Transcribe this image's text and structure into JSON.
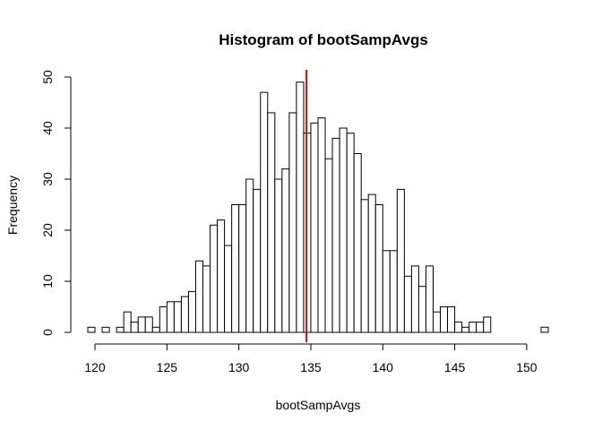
{
  "chart_data": {
    "type": "bar",
    "title": "Histogram of bootSampAvgs",
    "xlabel": "bootSampAvgs",
    "ylabel": "Frequency",
    "xlim": [
      119.5,
      151.5
    ],
    "ylim": [
      0,
      50
    ],
    "x_ticks": [
      120,
      125,
      130,
      135,
      140,
      145,
      150
    ],
    "y_ticks": [
      0,
      10,
      20,
      30,
      40,
      50
    ],
    "bin_width": 0.5,
    "bin_start": 119.5,
    "values": [
      1,
      0,
      1,
      0,
      1,
      4,
      2,
      3,
      3,
      1,
      5,
      6,
      6,
      7,
      8,
      14,
      13,
      21,
      22,
      17,
      25,
      25,
      30,
      28,
      47,
      43,
      30,
      32,
      43,
      49,
      39,
      41,
      42,
      34,
      38,
      40,
      39,
      35,
      26,
      27,
      25,
      16,
      16,
      28,
      11,
      13,
      9,
      13,
      4,
      5,
      5,
      2,
      1,
      2,
      2,
      3,
      0,
      0,
      0,
      0,
      0,
      0,
      0,
      1
    ],
    "vline": {
      "x": 134.7,
      "color": "#e00000"
    },
    "grid": false,
    "legend": "none"
  }
}
